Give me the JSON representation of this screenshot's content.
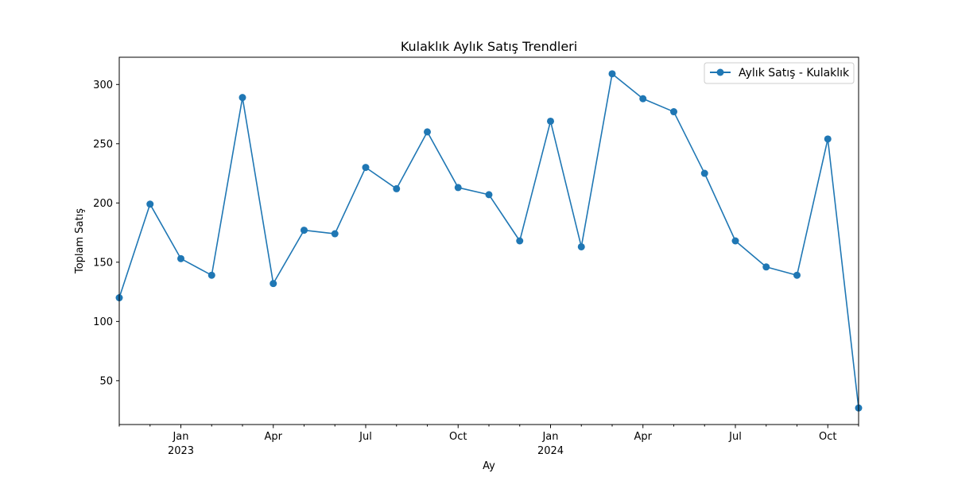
{
  "chart_data": {
    "type": "line",
    "title": "Kulaklık Aylık Satış Trendleri",
    "xlabel": "Ay",
    "ylabel": "Toplam Satış",
    "x": [
      "2022-11",
      "2022-12",
      "2023-01",
      "2023-02",
      "2023-03",
      "2023-04",
      "2023-05",
      "2023-06",
      "2023-07",
      "2023-08",
      "2023-09",
      "2023-10",
      "2023-11",
      "2023-12",
      "2024-01",
      "2024-02",
      "2024-03",
      "2024-04",
      "2024-05",
      "2024-06",
      "2024-07",
      "2024-08",
      "2024-09",
      "2024-10",
      "2024-11"
    ],
    "series": [
      {
        "name": "Aylık Satış - Kulaklık",
        "color": "#1f77b4",
        "values": [
          120,
          199,
          153,
          139,
          289,
          132,
          177,
          174,
          230,
          212,
          260,
          213,
          207,
          168,
          269,
          163,
          309,
          288,
          277,
          225,
          168,
          146,
          139,
          254,
          27
        ]
      }
    ],
    "ylim": [
      13,
      323
    ],
    "yticks": [
      50,
      100,
      150,
      200,
      250,
      300
    ],
    "xticks": [
      {
        "month": "2023-01",
        "label": "Jan",
        "year": "2023"
      },
      {
        "month": "2023-04",
        "label": "Apr"
      },
      {
        "month": "2023-07",
        "label": "Jul"
      },
      {
        "month": "2023-10",
        "label": "Oct"
      },
      {
        "month": "2024-01",
        "label": "Jan",
        "year": "2024"
      },
      {
        "month": "2024-04",
        "label": "Apr"
      },
      {
        "month": "2024-07",
        "label": "Jul"
      },
      {
        "month": "2024-10",
        "label": "Oct"
      }
    ],
    "legend": "top-right",
    "grid": false
  }
}
